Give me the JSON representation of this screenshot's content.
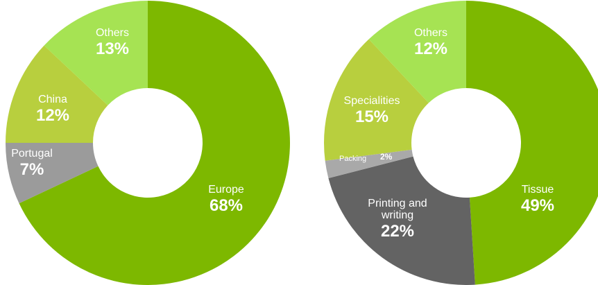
{
  "chart_data": [
    {
      "type": "pie",
      "title": "",
      "slices": [
        {
          "label": "Europe",
          "pct_text": "68%",
          "value": 68,
          "color": "#7db800"
        },
        {
          "label": "Portugal",
          "pct_text": "7%",
          "value": 7,
          "color": "#9b9b9b"
        },
        {
          "label": "China",
          "pct_text": "12%",
          "value": 12,
          "color": "#b8cf3e"
        },
        {
          "label": "Others",
          "pct_text": "13%",
          "value": 13,
          "color": "#a6e353"
        }
      ]
    },
    {
      "type": "pie",
      "title": "",
      "slices": [
        {
          "label": "Tissue",
          "pct_text": "49%",
          "value": 49,
          "color": "#7db800"
        },
        {
          "label": "Printing and\nwriting",
          "pct_text": "22%",
          "value": 22,
          "color": "#636363"
        },
        {
          "label": "Packing",
          "pct_text": "2%",
          "value": 2,
          "color": "#a9a9a9"
        },
        {
          "label": "Specialities",
          "pct_text": "15%",
          "value": 15,
          "color": "#b8cf3e"
        },
        {
          "label": "Others",
          "pct_text": "12%",
          "value": 12,
          "color": "#a6e353"
        }
      ]
    }
  ]
}
